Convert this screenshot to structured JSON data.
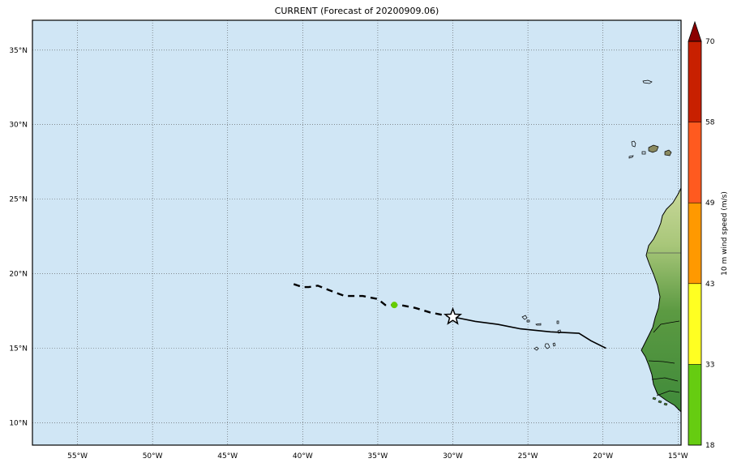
{
  "title": "CURRENT (Forecast of 20200909.06)",
  "map": {
    "lon_range": [
      -58,
      -14.8
    ],
    "lat_range": [
      8.5,
      37
    ],
    "grid": true,
    "ocean_color": "#d0e6f5",
    "lat_ticks": [
      {
        "value": 35,
        "label": "35°N"
      },
      {
        "value": 30,
        "label": "30°N"
      },
      {
        "value": 25,
        "label": "25°N"
      },
      {
        "value": 20,
        "label": "20°N"
      },
      {
        "value": 15,
        "label": "15°N"
      },
      {
        "value": 10,
        "label": "10°N"
      }
    ],
    "lon_ticks": [
      {
        "value": -55,
        "label": "55°W"
      },
      {
        "value": -50,
        "label": "50°W"
      },
      {
        "value": -45,
        "label": "45°W"
      },
      {
        "value": -40,
        "label": "40°W"
      },
      {
        "value": -35,
        "label": "35°W"
      },
      {
        "value": -30,
        "label": "30°W"
      },
      {
        "value": -25,
        "label": "25°W"
      },
      {
        "value": -20,
        "label": "20°W"
      },
      {
        "value": -15,
        "label": "15°W"
      }
    ]
  },
  "track": {
    "observed": [
      [
        -19.8,
        15.0
      ],
      [
        -20.8,
        15.5
      ],
      [
        -21.6,
        16.0
      ],
      [
        -23.5,
        16.1
      ],
      [
        -25.5,
        16.3
      ],
      [
        -27.0,
        16.6
      ],
      [
        -28.5,
        16.8
      ],
      [
        -30.0,
        17.1
      ]
    ],
    "forecast": [
      [
        -30.0,
        17.1
      ],
      [
        -31.5,
        17.4
      ],
      [
        -32.5,
        17.7
      ],
      [
        -33.5,
        17.9
      ],
      [
        -34.5,
        17.9
      ],
      [
        -35.0,
        18.3
      ],
      [
        -36.0,
        18.5
      ],
      [
        -37.2,
        18.5
      ],
      [
        -38.0,
        18.8
      ],
      [
        -39.0,
        19.2
      ],
      [
        -39.6,
        19.1
      ],
      [
        -40.0,
        19.1
      ],
      [
        -40.9,
        19.4
      ]
    ],
    "current_position": {
      "lon": -30.0,
      "lat": 17.1
    },
    "forecast_marker": {
      "lon": -33.9,
      "lat": 17.9,
      "color": "#66cc00"
    }
  },
  "colorbar": {
    "label": "10 m wind speed (m/s)",
    "levels": [
      18,
      33,
      43,
      49,
      58,
      70
    ],
    "colors": [
      "#66cc11",
      "#ffff22",
      "#ff9900",
      "#ff5a1f",
      "#c82000"
    ],
    "extend_color": "#8b0000"
  }
}
